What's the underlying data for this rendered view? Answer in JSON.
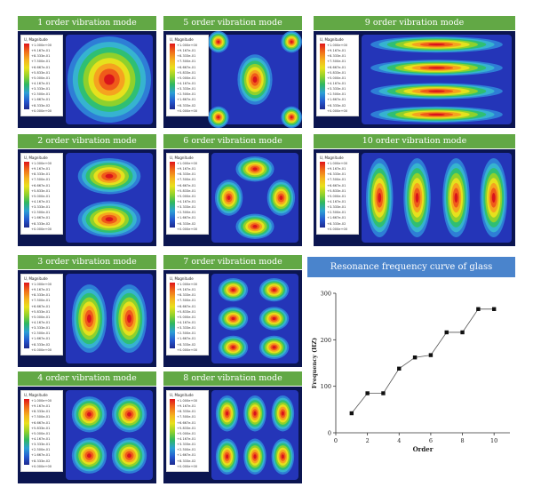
{
  "modes": [
    {
      "id": 1,
      "title": "1 order vibration mode"
    },
    {
      "id": 2,
      "title": "2 order vibration mode"
    },
    {
      "id": 3,
      "title": "3 order vibration mode"
    },
    {
      "id": 4,
      "title": "4 order vibration mode"
    },
    {
      "id": 5,
      "title": "5 order vibration mode"
    },
    {
      "id": 6,
      "title": "6 order vibration mode"
    },
    {
      "id": 7,
      "title": "7 order vibration mode"
    },
    {
      "id": 8,
      "title": "8 order vibration mode"
    },
    {
      "id": 9,
      "title": "9 order vibration mode"
    },
    {
      "id": 10,
      "title": "10 order vibration mode"
    }
  ],
  "legend": {
    "title": "U, Magnitude",
    "values": [
      "+1.000e+00",
      "+9.167e-01",
      "+8.333e-01",
      "+7.500e-01",
      "+6.667e-01",
      "+5.833e-01",
      "+5.000e-01",
      "+4.167e-01",
      "+3.333e-01",
      "+2.500e-01",
      "+1.667e-01",
      "+8.333e-02",
      "+0.000e+00"
    ]
  },
  "chart_data": {
    "type": "line",
    "title": "Resonance frequency curve of glass",
    "xlabel": "Order",
    "ylabel": "Frequency (HZ)",
    "x": [
      1,
      2,
      3,
      4,
      5,
      6,
      7,
      8,
      9,
      10
    ],
    "y": [
      42,
      85,
      85,
      138,
      162,
      167,
      216,
      216,
      266,
      266
    ],
    "xlim": [
      0,
      11
    ],
    "ylim": [
      0,
      300
    ],
    "xticks": [
      0,
      2,
      4,
      6,
      8,
      10
    ],
    "yticks": [
      0,
      100,
      200,
      300
    ],
    "marker": "square",
    "colors": {
      "line": "#555555",
      "marker": "#111111"
    }
  }
}
